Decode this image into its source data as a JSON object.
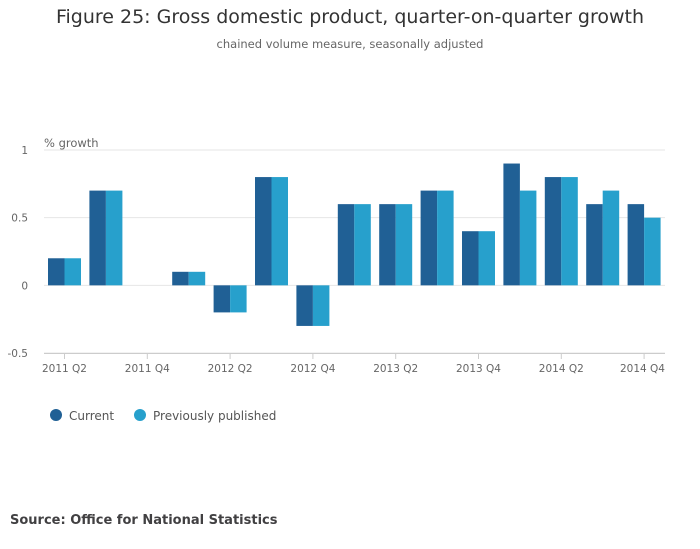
{
  "header": {
    "title": "Figure 25: Gross domestic product, quarter-on-quarter growth",
    "subtitle": "chained volume measure, seasonally adjusted"
  },
  "footer": {
    "source": "Source: Office for National Statistics"
  },
  "colors": {
    "current": "#206095",
    "previous": "#27A0CC",
    "grid": "#e6e6e6",
    "axis_text": "#666666"
  },
  "chart_data": {
    "type": "bar",
    "title": "Figure 25: Gross domestic product, quarter-on-quarter growth",
    "subtitle": "chained volume measure, seasonally adjusted",
    "ylabel": "% growth",
    "xlabel": "",
    "ylim": [
      -0.5,
      1
    ],
    "yticks": [
      "1",
      "0.5",
      "0",
      "-0.5"
    ],
    "ytick_values": [
      1,
      0.5,
      0,
      -0.5
    ],
    "grid": true,
    "legend": "bottom-left",
    "categories": [
      "2011 Q2",
      "2011 Q3",
      "2011 Q4",
      "2012 Q1",
      "2012 Q2",
      "2012 Q3",
      "2012 Q4",
      "2013 Q1",
      "2013 Q2",
      "2013 Q3",
      "2013 Q4",
      "2014 Q1",
      "2014 Q2",
      "2014 Q3",
      "2014 Q4"
    ],
    "visible_tick_labels": [
      "2011 Q2",
      "2011 Q4",
      "2012 Q2",
      "2012 Q4",
      "2013 Q2",
      "2013 Q4",
      "2014 Q2",
      "2014 Q4"
    ],
    "series": [
      {
        "name": "Current",
        "values": [
          0.2,
          0.7,
          0.0,
          0.1,
          -0.2,
          0.8,
          -0.3,
          0.6,
          0.6,
          0.7,
          0.4,
          0.9,
          0.8,
          0.6,
          0.6
        ]
      },
      {
        "name": "Previously published",
        "values": [
          0.2,
          0.7,
          0.0,
          0.1,
          -0.2,
          0.8,
          -0.3,
          0.6,
          0.6,
          0.7,
          0.4,
          0.7,
          0.8,
          0.7,
          0.5
        ]
      }
    ]
  }
}
